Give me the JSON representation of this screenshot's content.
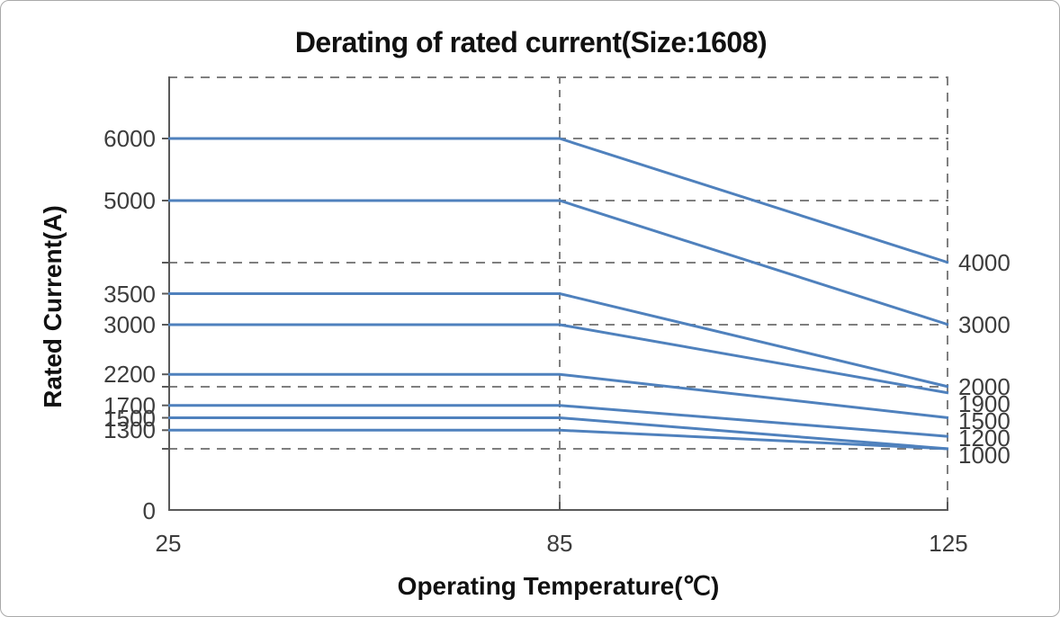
{
  "title": "Derating of rated current(Size:1608)",
  "chart_data": {
    "type": "line",
    "title": "Derating of rated current(Size:1608)",
    "xlabel": "Operating Temperature(℃)",
    "ylabel": "Rated Current(A)",
    "xlim": [
      25,
      125
    ],
    "ylim": [
      0,
      7000
    ],
    "x_tick_labels": [
      "25",
      "85",
      "125"
    ],
    "x_tick_values": [
      25,
      85,
      125
    ],
    "y_axis_left_labels": [
      "6000",
      "5000",
      "3500",
      "3000",
      "2200",
      "1700",
      "1500",
      "1300",
      "0"
    ],
    "y_axis_left_values": [
      6000,
      5000,
      3500,
      3000,
      2200,
      1700,
      1500,
      1300,
      0
    ],
    "y_axis_right_labels": [
      "4000",
      "3000",
      "2000",
      "1900",
      "1500",
      "1200",
      "1000"
    ],
    "y_axis_right_values": [
      4000,
      3000,
      2000,
      1900,
      1500,
      1200,
      1000
    ],
    "grid": "dashed",
    "h_gridline_values": [
      6000,
      5000,
      4000,
      3000,
      2000,
      1000
    ],
    "v_gridline_x": 85,
    "legend_position": "none",
    "derate_start_x": 85,
    "series": [
      {
        "name": "6000",
        "x": [
          25,
          85,
          125
        ],
        "values": [
          6000,
          6000,
          4000
        ]
      },
      {
        "name": "5000",
        "x": [
          25,
          85,
          125
        ],
        "values": [
          5000,
          5000,
          3000
        ]
      },
      {
        "name": "3500",
        "x": [
          25,
          85,
          125
        ],
        "values": [
          3500,
          3500,
          2000
        ]
      },
      {
        "name": "3000",
        "x": [
          25,
          85,
          125
        ],
        "values": [
          3000,
          3000,
          1900
        ]
      },
      {
        "name": "2200",
        "x": [
          25,
          85,
          125
        ],
        "values": [
          2200,
          2200,
          1500
        ]
      },
      {
        "name": "1700",
        "x": [
          25,
          85,
          125
        ],
        "values": [
          1700,
          1700,
          1200
        ]
      },
      {
        "name": "1500",
        "x": [
          25,
          85,
          125
        ],
        "values": [
          1500,
          1500,
          1000
        ]
      },
      {
        "name": "1300",
        "x": [
          25,
          85,
          125
        ],
        "values": [
          1300,
          1300,
          1000
        ]
      }
    ],
    "colors": {
      "line": "#4f81bd",
      "grid": "#7f7f7f",
      "axis": "#595959",
      "tick_text": "#3d3d3d",
      "title_text": "#111111",
      "background": "#ffffff"
    }
  }
}
